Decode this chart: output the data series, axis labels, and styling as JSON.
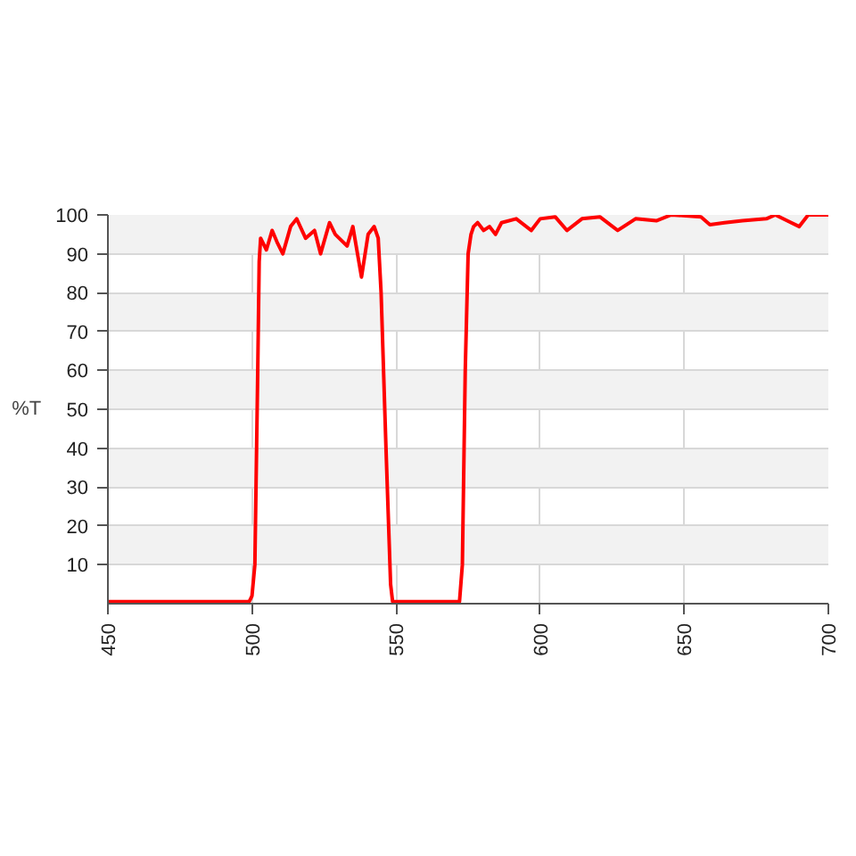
{
  "chart_data": {
    "type": "line",
    "ylabel": "%T",
    "x": [
      450,
      470,
      490,
      499,
      500,
      501,
      502,
      502.5,
      503,
      505,
      507,
      508.7,
      510.7,
      513.4,
      515.5,
      518.6,
      521.7,
      523.8,
      526.9,
      528.9,
      533,
      535,
      538,
      540.3,
      542.4,
      543.8,
      544.8,
      546.5,
      548.1,
      548.8,
      560,
      572,
      573,
      574,
      575,
      576,
      576.9,
      578.3,
      580.4,
      582.4,
      584.5,
      586.6,
      591.7,
      596.9,
      600,
      605.2,
      609.3,
      614.5,
      620.7,
      626.9,
      633.1,
      640.3,
      645.5,
      655.8,
      658.9,
      664,
      670.2,
      678.5,
      681.6,
      685.7,
      689.9,
      693,
      700
    ],
    "series": [
      {
        "color": "#ff0000",
        "values": [
          0.5,
          0.5,
          0.5,
          0.5,
          2,
          10,
          60,
          88,
          94,
          91,
          96,
          93,
          90,
          97,
          99,
          94,
          96,
          90,
          98,
          95,
          92,
          97,
          84,
          95,
          97,
          94,
          80,
          40,
          5,
          0.5,
          0.5,
          0.5,
          10,
          60,
          90,
          95,
          97,
          98,
          96,
          97,
          95,
          98,
          99,
          96,
          99,
          99.5,
          96,
          99,
          99.5,
          96,
          99,
          98.5,
          100,
          99.5,
          97.5,
          98,
          98.5,
          99,
          100,
          98.5,
          97,
          100,
          100
        ]
      }
    ],
    "xlim": [
      450,
      700
    ],
    "xticks": [
      450,
      500,
      550,
      600,
      650,
      700
    ],
    "ylim": [
      0,
      100
    ],
    "yticks": [
      10,
      20,
      30,
      40,
      50,
      60,
      70,
      80,
      90,
      100
    ],
    "grid": true,
    "line_style": "solid",
    "marker": "none"
  }
}
